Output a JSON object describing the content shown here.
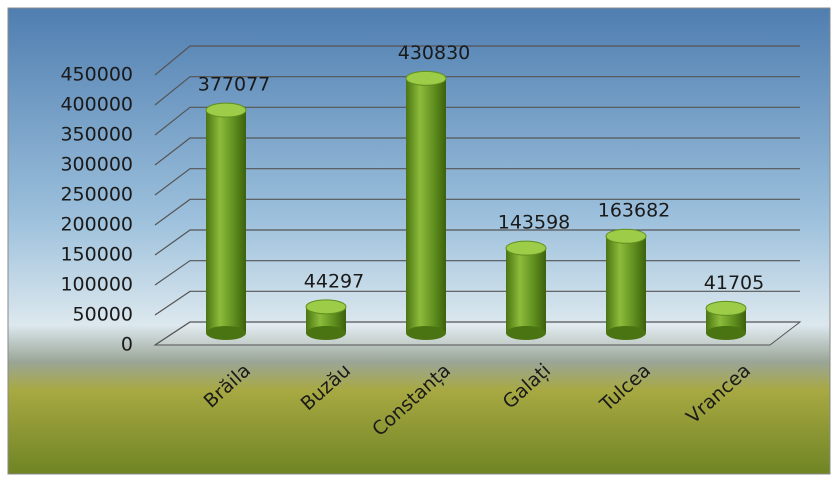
{
  "chart_data": {
    "type": "bar",
    "categories": [
      "Brăila",
      "Buzău",
      "Constanța",
      "Galați",
      "Tulcea",
      "Vrancea"
    ],
    "values": [
      377077,
      44297,
      430830,
      143598,
      163682,
      41705
    ],
    "color": "#5f8f1e",
    "ylim": [
      0,
      450000
    ],
    "yticks": [
      0,
      50000,
      100000,
      150000,
      200000,
      250000,
      300000,
      350000,
      400000,
      450000
    ],
    "grid": true
  }
}
